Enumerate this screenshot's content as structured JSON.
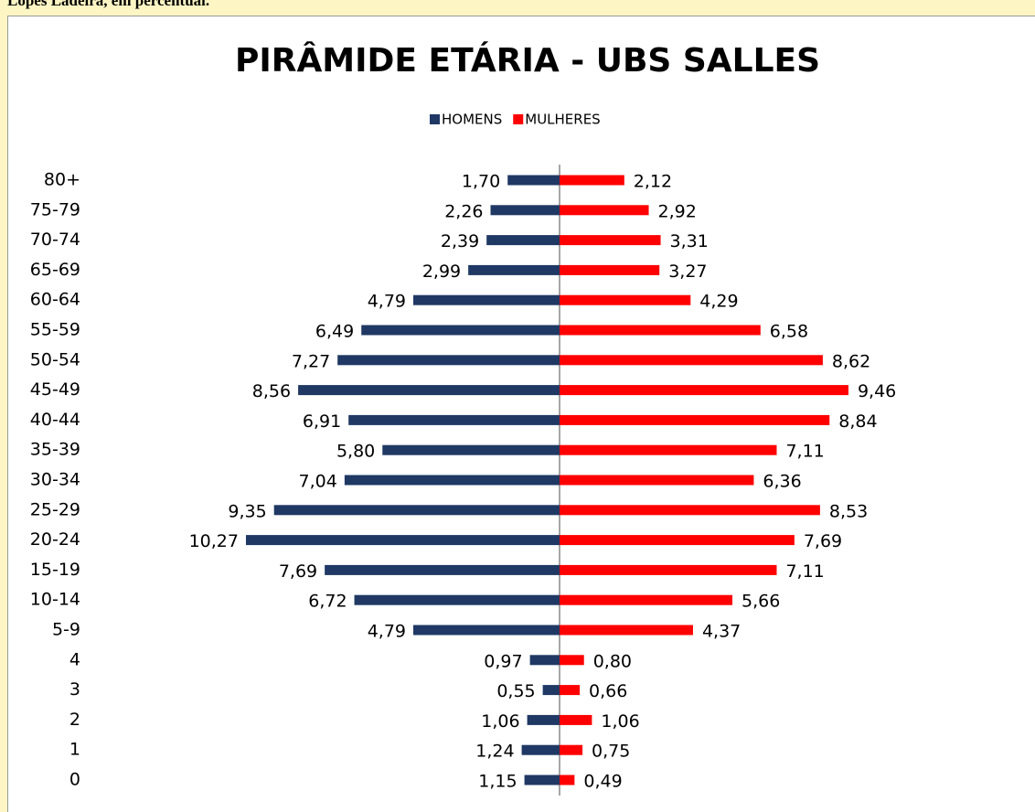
{
  "caption": "Lopes Ladeira, em percentual.",
  "chart_data": {
    "type": "pyramid",
    "title": "PIRÂMIDE ETÁRIA - UBS SALLES",
    "categories": [
      "80+",
      "75-79",
      "70-74",
      "65-69",
      "60-64",
      "55-59",
      "50-54",
      "45-49",
      "40-44",
      "35-39",
      "30-34",
      "25-29",
      "20-24",
      "15-19",
      "10-14",
      "5-9",
      "4",
      "3",
      "2",
      "1",
      "0"
    ],
    "series": [
      {
        "name": "HOMENS",
        "color": "#1f3864",
        "values": [
          1.7,
          2.26,
          2.39,
          2.99,
          4.79,
          6.49,
          7.27,
          8.56,
          6.91,
          5.8,
          7.04,
          9.35,
          10.27,
          7.69,
          6.72,
          4.79,
          0.97,
          0.55,
          1.06,
          1.24,
          1.15
        ],
        "value_labels": [
          "1,70",
          "2,26",
          "2,39",
          "2,99",
          "4,79",
          "6,49",
          "7,27",
          "8,56",
          "6,91",
          "5,80",
          "7,04",
          "9,35",
          "10,27",
          "7,69",
          "6,72",
          "4,79",
          "0,97",
          "0,55",
          "1,06",
          "1,24",
          "1,15"
        ]
      },
      {
        "name": "MULHERES",
        "color": "#ff0000",
        "values": [
          2.12,
          2.92,
          3.31,
          3.27,
          4.29,
          6.58,
          8.62,
          9.46,
          8.84,
          7.11,
          6.36,
          8.53,
          7.69,
          7.11,
          5.66,
          4.37,
          0.8,
          0.66,
          1.06,
          0.75,
          0.49
        ],
        "value_labels": [
          "2,12",
          "2,92",
          "3,31",
          "3,27",
          "4,29",
          "6,58",
          "8,62",
          "9,46",
          "8,84",
          "7,11",
          "6,36",
          "8,53",
          "7,69",
          "7,11",
          "5,66",
          "4,37",
          "0,80",
          "0,66",
          "1,06",
          "0,75",
          "0,49"
        ]
      }
    ],
    "legend": "top"
  }
}
